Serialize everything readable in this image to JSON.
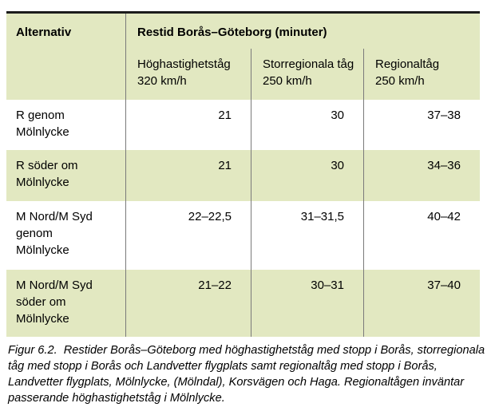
{
  "table": {
    "corner_header": "Alternativ",
    "group_header": "Restid Borås–Göteborg (minuter)",
    "sub_headers": [
      "Höghastighetståg\n320 km/h",
      "Storregionala tåg\n250 km/h",
      "Regionaltåg\n250 km/h"
    ],
    "rows": [
      {
        "label": "R genom\nMölnlycke",
        "values": [
          "21",
          "30",
          "37–38"
        ]
      },
      {
        "label": "R söder om\nMölnlycke",
        "values": [
          "21",
          "30",
          "34–36"
        ]
      },
      {
        "label": "M Nord/M Syd\ngenom\nMölnlycke",
        "values": [
          "22–22,5",
          "31–31,5",
          "40–42"
        ]
      },
      {
        "label": "M Nord/M Syd\nsöder om\nMölnlycke",
        "values": [
          "21–22",
          "30–31",
          "37–40"
        ]
      }
    ]
  },
  "caption": "Figur 6.2.  Restider Borås–Göteborg med höghastighetståg med stopp i Borås, storregionala\ntåg med stopp i Borås och Landvetter flygplats samt regionaltåg med stopp i Borås,\nLandvetter flygplats, Mölnlycke, (Mölndal), Korsvägen och Haga. Regionaltågen inväntar\npasserande höghastighetståg i Mölnlycke.",
  "colors": {
    "row_green": "#e2e8c1",
    "divider_gray": "#7a7a7a",
    "top_rule_black": "#1c1c1c"
  }
}
